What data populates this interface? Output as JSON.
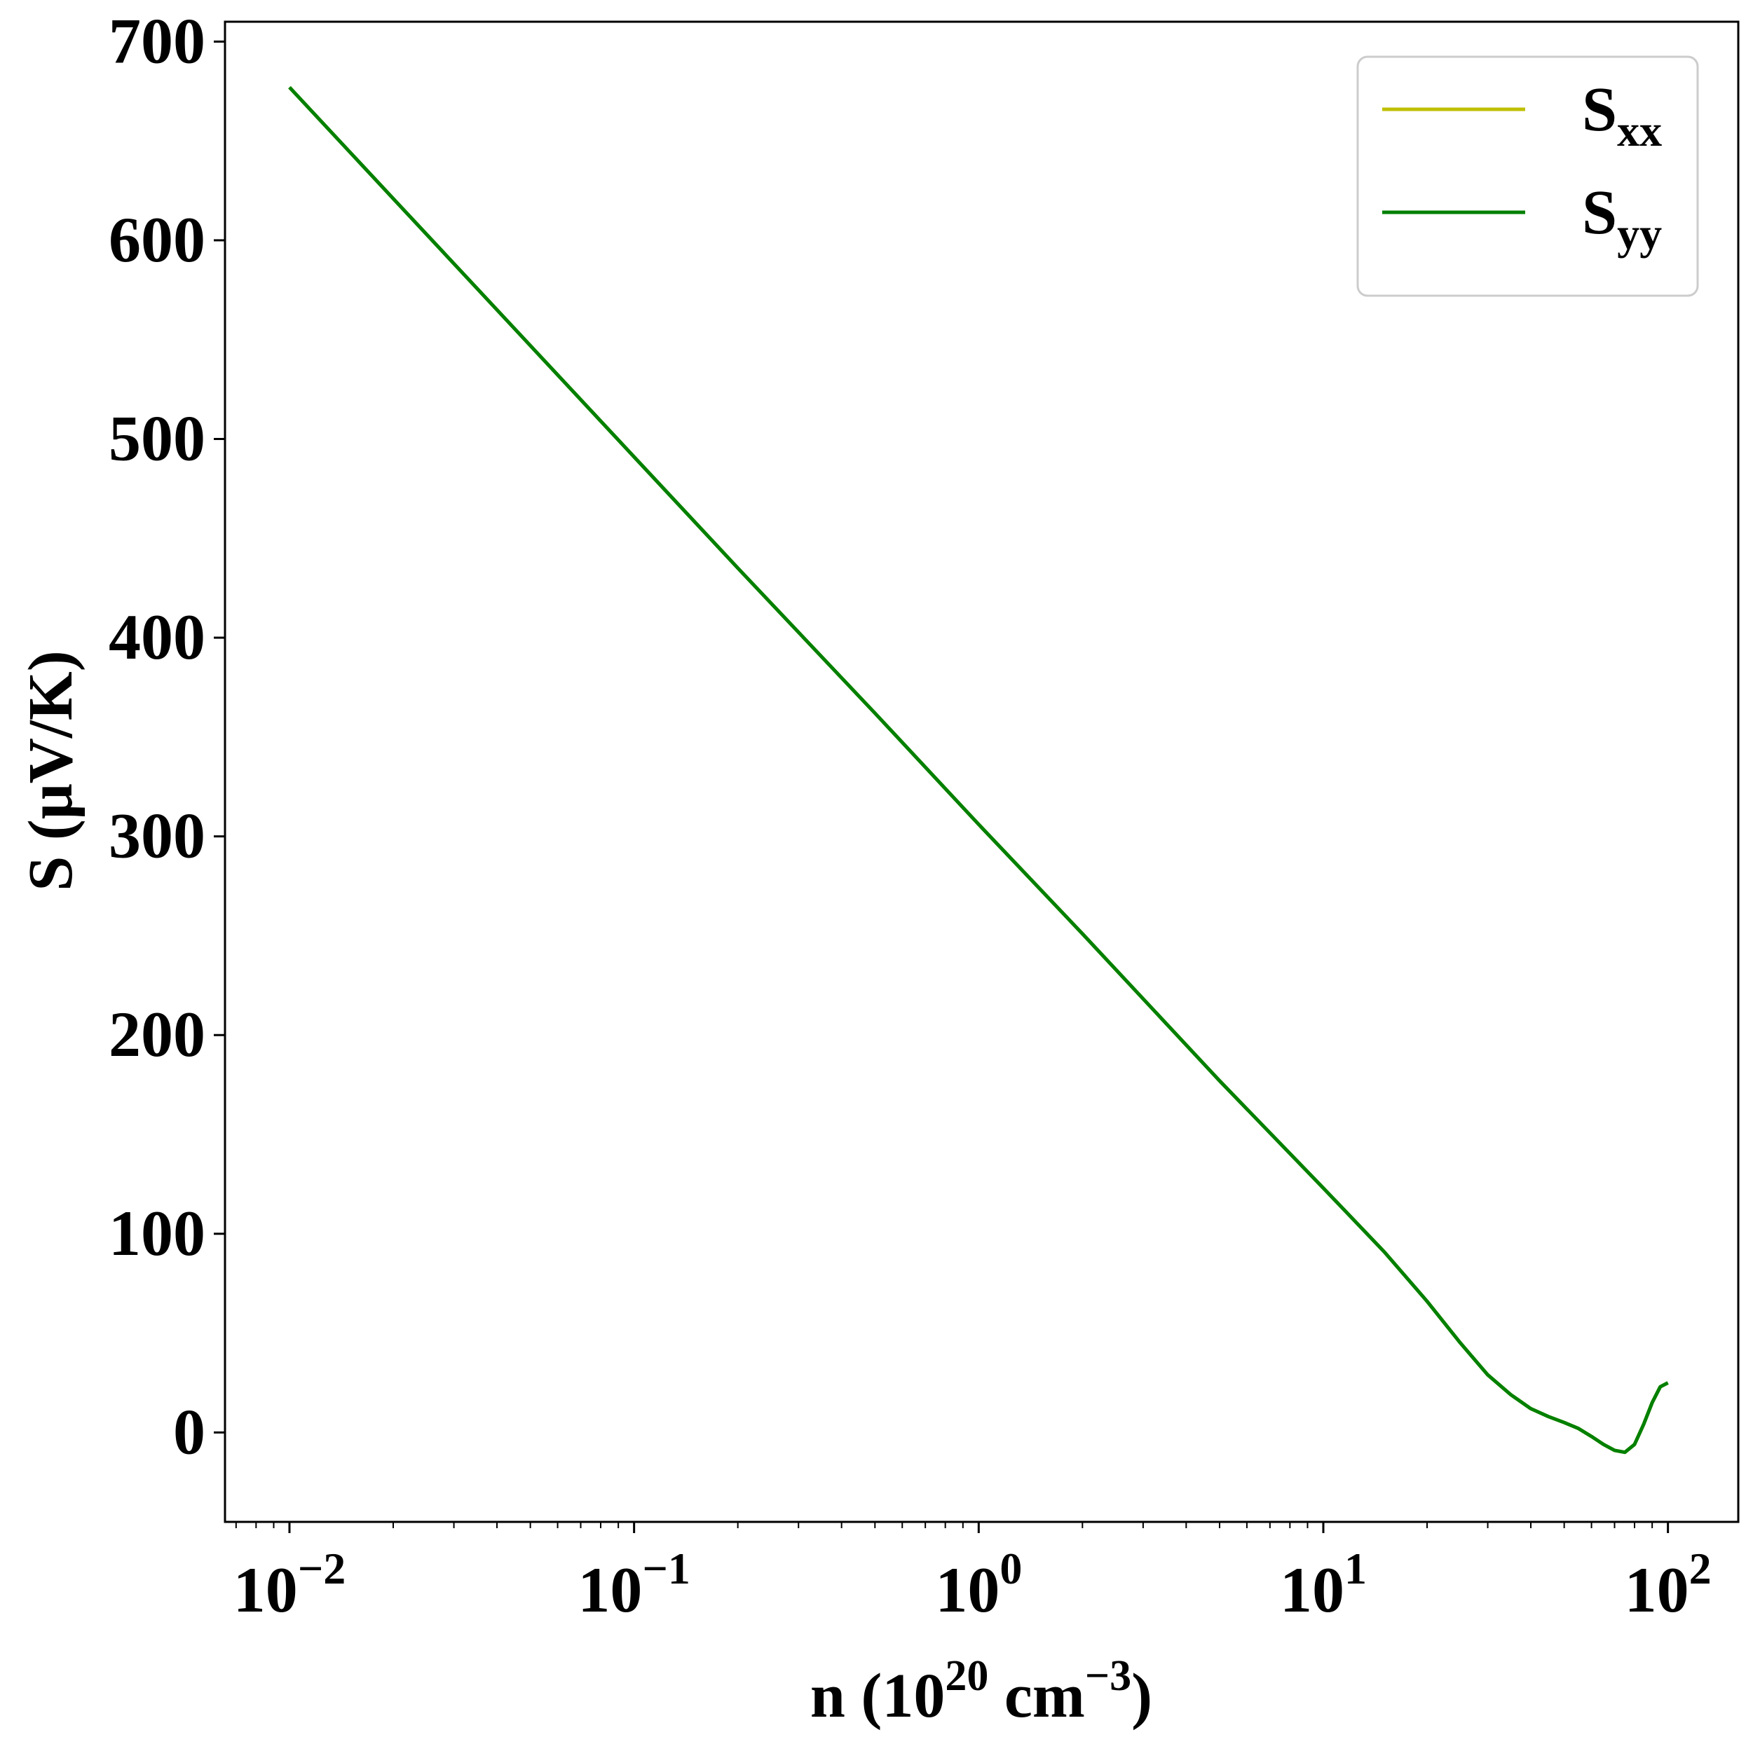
{
  "chart_data": {
    "type": "line",
    "xscale": "log",
    "xlim": [
      0.0065,
      160
    ],
    "ylim": [
      -45,
      710
    ],
    "xlabel": {
      "base": "n (10",
      "sup1": "20",
      "mid": " cm",
      "sup2": "−3",
      "end": ")"
    },
    "ylabel": "S (μV/K)",
    "xticks": [
      {
        "value": 0.01,
        "base": "10",
        "exp": "−2"
      },
      {
        "value": 0.1,
        "base": "10",
        "exp": "−1"
      },
      {
        "value": 1,
        "base": "10",
        "exp": "0"
      },
      {
        "value": 10,
        "base": "10",
        "exp": "1"
      },
      {
        "value": 100,
        "base": "10",
        "exp": "2"
      }
    ],
    "yticks": [
      0,
      100,
      200,
      300,
      400,
      500,
      600,
      700
    ],
    "grid": false,
    "legend_position": "top-right",
    "series": [
      {
        "name": "S",
        "sub": "xx",
        "color": "#bfbf00",
        "x": [
          0.01,
          0.02,
          0.05,
          0.1,
          0.2,
          0.5,
          1,
          2,
          5,
          10,
          15,
          20,
          25,
          30,
          35,
          40,
          45,
          50,
          55,
          60,
          65,
          70,
          75,
          80,
          85,
          90,
          95,
          100
        ],
        "y": [
          677,
          621,
          547,
          491,
          435,
          362,
          306,
          251,
          177,
          123,
          91,
          66,
          45,
          29,
          19,
          12,
          8,
          5,
          2,
          -2,
          -6,
          -9,
          -10,
          -6,
          4,
          15,
          23,
          25
        ]
      },
      {
        "name": "S",
        "sub": "yy",
        "color": "#008000",
        "x": [
          0.01,
          0.02,
          0.05,
          0.1,
          0.2,
          0.5,
          1,
          2,
          5,
          10,
          15,
          20,
          25,
          30,
          35,
          40,
          45,
          50,
          55,
          60,
          65,
          70,
          75,
          80,
          85,
          90,
          95,
          100
        ],
        "y": [
          677,
          621,
          547,
          491,
          435,
          362,
          306,
          251,
          177,
          123,
          91,
          66,
          45,
          29,
          19,
          12,
          8,
          5,
          2,
          -2,
          -6,
          -9,
          -10,
          -6,
          4,
          15,
          23,
          25
        ]
      }
    ]
  }
}
